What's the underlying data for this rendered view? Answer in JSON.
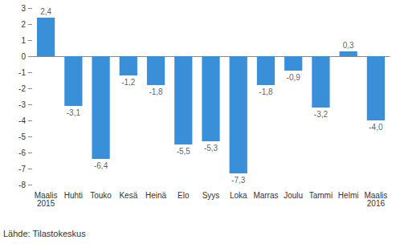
{
  "chart_data": {
    "type": "bar",
    "categories": [
      "Maalis\n2015",
      "Huhti",
      "Touko",
      "Kesä",
      "Heinä",
      "Elo",
      "Syys",
      "Loka",
      "Marras",
      "Joulu",
      "Tammi",
      "Helmi",
      "Maalis\n2016"
    ],
    "values": [
      2.4,
      -3.1,
      -6.4,
      -1.2,
      -1.8,
      -5.5,
      -5.3,
      -7.3,
      -1.8,
      -0.9,
      -3.2,
      0.3,
      -4.0
    ],
    "value_labels": [
      "2,4",
      "-3,1",
      "-6,4",
      "-1,2",
      "-1,8",
      "-5,5",
      "-5,3",
      "-7,3",
      "-1,8",
      "-0,9",
      "-3,2",
      "0,3",
      "-4,0"
    ],
    "color": "#3a8fd9",
    "ylim": [
      -8,
      3
    ],
    "yticks": [
      -8,
      -7,
      -6,
      -5,
      -4,
      -3,
      -2,
      -1,
      0,
      1,
      2,
      3
    ],
    "grid": false,
    "data_labels": true,
    "source": "Lähde: Tilastokeskus"
  }
}
